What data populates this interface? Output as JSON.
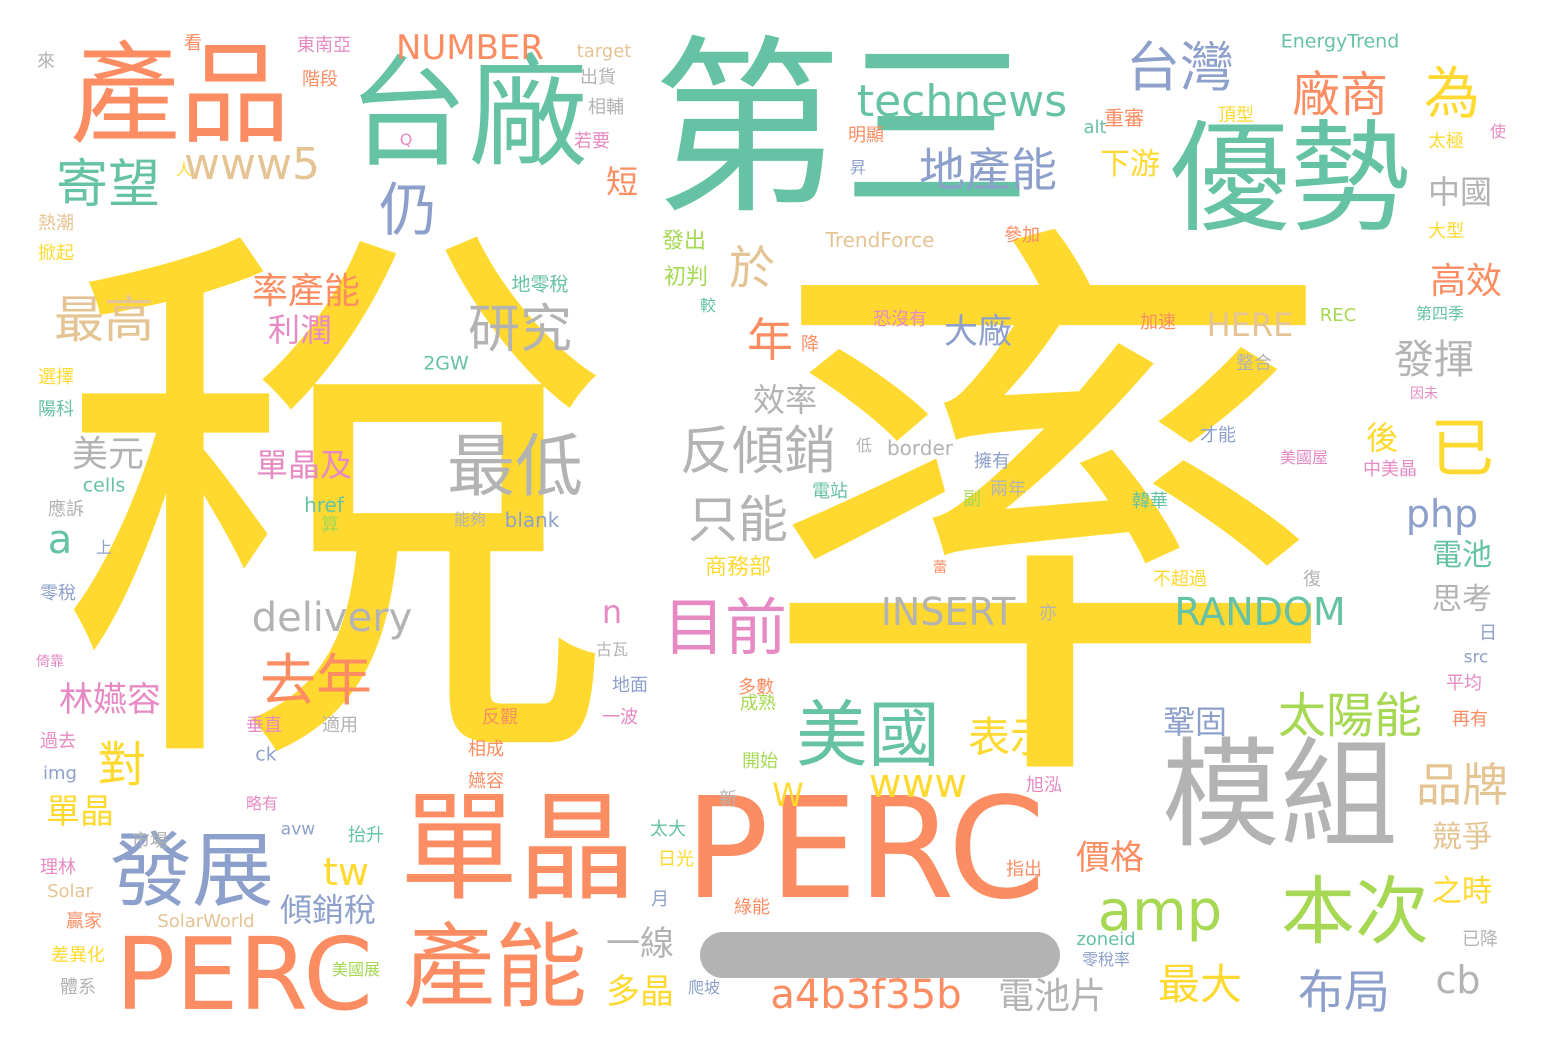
{
  "palette": {
    "yellow": "#ffd92f",
    "green": "#66c2a5",
    "orange": "#fc8d62",
    "blue": "#8da0cb",
    "pink": "#e78ac3",
    "lime": "#a6d854",
    "tan": "#e5c494",
    "gray": "#b3b3b3"
  },
  "words": [
    {
      "t": "稅",
      "c": "yellow"
    },
    {
      "t": "率",
      "c": "yellow"
    },
    {
      "t": "第三",
      "c": "green"
    },
    {
      "t": "台廠",
      "c": "green"
    },
    {
      "t": "產品",
      "c": "orange"
    },
    {
      "t": "優勢",
      "c": "green"
    },
    {
      "t": "PERC",
      "c": "orange"
    },
    {
      "t": "單晶",
      "c": "orange"
    },
    {
      "t": "模組",
      "c": "gray"
    },
    {
      "t": "PERC",
      "c": "orange"
    },
    {
      "t": "產能",
      "c": "orange"
    },
    {
      "t": "發展",
      "c": "blue"
    },
    {
      "t": "最低",
      "c": "gray"
    },
    {
      "t": "美國",
      "c": "green"
    },
    {
      "t": "本次",
      "c": "lime"
    },
    {
      "t": "台灣",
      "c": "blue"
    },
    {
      "t": "technews",
      "c": "green"
    },
    {
      "t": "廠商",
      "c": "orange"
    },
    {
      "t": "為",
      "c": "yellow"
    },
    {
      "t": "寄望",
      "c": "green"
    },
    {
      "t": "www5",
      "c": "tan"
    },
    {
      "t": "地產能",
      "c": "blue"
    },
    {
      "t": "仍",
      "c": "blue"
    },
    {
      "t": "研究",
      "c": "gray"
    },
    {
      "t": "反傾銷",
      "c": "gray"
    },
    {
      "t": "只能",
      "c": "gray"
    },
    {
      "t": "目前",
      "c": "pink"
    },
    {
      "t": "已",
      "c": "yellow"
    },
    {
      "t": "最高",
      "c": "tan"
    },
    {
      "t": "於",
      "c": "tan"
    },
    {
      "t": "年",
      "c": "orange"
    },
    {
      "t": "去年",
      "c": "orange"
    },
    {
      "t": "amp",
      "c": "lime"
    },
    {
      "t": "太陽能",
      "c": "lime"
    },
    {
      "t": "表示",
      "c": "yellow"
    },
    {
      "t": "delivery",
      "c": "gray"
    },
    {
      "t": "INSERT",
      "c": "gray"
    },
    {
      "t": "RANDOM",
      "c": "green"
    },
    {
      "t": "a4b3f35b",
      "c": "orange"
    },
    {
      "t": "NUMBER",
      "c": "orange"
    },
    {
      "t": "品牌",
      "c": "tan"
    },
    {
      "t": "www",
      "c": "yellow"
    },
    {
      "t": "布局",
      "c": "blue"
    },
    {
      "t": "最大",
      "c": "yellow"
    },
    {
      "t": "率產能",
      "c": "orange"
    },
    {
      "t": "發揮",
      "c": "gray"
    },
    {
      "t": "高效",
      "c": "orange"
    },
    {
      "t": "php",
      "c": "blue"
    },
    {
      "t": "電池片",
      "c": "gray"
    },
    {
      "t": "tw",
      "c": "yellow"
    },
    {
      "t": "cb",
      "c": "gray"
    },
    {
      "t": "美元",
      "c": "gray"
    },
    {
      "t": "a",
      "c": "green"
    },
    {
      "t": "對",
      "c": "yellow"
    },
    {
      "t": "林嬿容",
      "c": "pink"
    },
    {
      "t": "單晶及",
      "c": "pink"
    },
    {
      "t": "利潤",
      "c": "pink"
    },
    {
      "t": "大廠",
      "c": "blue"
    },
    {
      "t": "效率",
      "c": "gray"
    },
    {
      "t": "傾銷稅",
      "c": "blue"
    },
    {
      "t": "價格",
      "c": "orange"
    },
    {
      "t": "多晶",
      "c": "yellow"
    },
    {
      "t": "一線",
      "c": "gray"
    },
    {
      "t": "下游",
      "c": "yellow"
    },
    {
      "t": "中國",
      "c": "gray"
    },
    {
      "t": "HERE",
      "c": "tan"
    },
    {
      "t": "後",
      "c": "yellow"
    },
    {
      "t": "電池",
      "c": "green"
    },
    {
      "t": "思考",
      "c": "gray"
    },
    {
      "t": "競爭",
      "c": "tan"
    },
    {
      "t": "之時",
      "c": "yellow"
    },
    {
      "t": "鞏固",
      "c": "blue"
    },
    {
      "t": "短",
      "c": "orange"
    },
    {
      "t": "n",
      "c": "pink"
    },
    {
      "t": "W",
      "c": "yellow"
    },
    {
      "t": "單晶",
      "c": "yellow"
    },
    {
      "t": "TrendForce",
      "c": "tan"
    },
    {
      "t": "EnergyTrend",
      "c": "green"
    },
    {
      "t": "商務部",
      "c": "yellow"
    },
    {
      "t": "初判",
      "c": "lime"
    },
    {
      "t": "發出",
      "c": "lime"
    },
    {
      "t": "地零稅",
      "c": "green"
    },
    {
      "t": "blank",
      "c": "blue"
    },
    {
      "t": "能夠",
      "c": "gray"
    },
    {
      "t": "2GW",
      "c": "green"
    },
    {
      "t": "border",
      "c": "gray"
    },
    {
      "t": "href",
      "c": "green"
    },
    {
      "t": "cells",
      "c": "green"
    },
    {
      "t": "img",
      "c": "blue"
    },
    {
      "t": "ck",
      "c": "blue"
    },
    {
      "t": "avw",
      "c": "blue"
    },
    {
      "t": "alt",
      "c": "green"
    },
    {
      "t": "REC",
      "c": "lime"
    },
    {
      "t": "Solar",
      "c": "tan"
    },
    {
      "t": "SolarWorld",
      "c": "tan"
    },
    {
      "t": "zoneid",
      "c": "green"
    },
    {
      "t": "src",
      "c": "blue"
    },
    {
      "t": "target",
      "c": "tan"
    },
    {
      "t": "東南亞",
      "c": "pink"
    },
    {
      "t": "階段",
      "c": "orange"
    },
    {
      "t": "出貨",
      "c": "gray"
    },
    {
      "t": "相輔",
      "c": "gray"
    },
    {
      "t": "若要",
      "c": "pink"
    },
    {
      "t": "看",
      "c": "orange"
    },
    {
      "t": "來",
      "c": "gray"
    },
    {
      "t": "熱潮",
      "c": "tan"
    },
    {
      "t": "掀起",
      "c": "yellow"
    },
    {
      "t": "選擇",
      "c": "yellow"
    },
    {
      "t": "陽科",
      "c": "green"
    },
    {
      "t": "應訴",
      "c": "gray"
    },
    {
      "t": "上",
      "c": "blue"
    },
    {
      "t": "零稅",
      "c": "blue"
    },
    {
      "t": "倚靠",
      "c": "pink"
    },
    {
      "t": "過去",
      "c": "pink"
    },
    {
      "t": "理林",
      "c": "pink"
    },
    {
      "t": "贏家",
      "c": "orange"
    },
    {
      "t": "差異化",
      "c": "yellow"
    },
    {
      "t": "體系",
      "c": "gray"
    },
    {
      "t": "美國展",
      "c": "lime"
    },
    {
      "t": "爬坡",
      "c": "blue"
    },
    {
      "t": "嬿容",
      "c": "orange"
    },
    {
      "t": "相成",
      "c": "orange"
    },
    {
      "t": "反觀",
      "c": "orange"
    },
    {
      "t": "一波",
      "c": "pink"
    },
    {
      "t": "地面",
      "c": "blue"
    },
    {
      "t": "古瓦",
      "c": "gray"
    },
    {
      "t": "垂直",
      "c": "pink"
    },
    {
      "t": "適用",
      "c": "gray"
    },
    {
      "t": "市場",
      "c": "gray"
    },
    {
      "t": "略有",
      "c": "pink"
    },
    {
      "t": "抬升",
      "c": "green"
    },
    {
      "t": "太大",
      "c": "green"
    },
    {
      "t": "日光",
      "c": "yellow"
    },
    {
      "t": "月",
      "c": "blue"
    },
    {
      "t": "綠能",
      "c": "orange"
    },
    {
      "t": "開始",
      "c": "lime"
    },
    {
      "t": "新",
      "c": "gray"
    },
    {
      "t": "成熟",
      "c": "lime"
    },
    {
      "t": "多數",
      "c": "orange"
    },
    {
      "t": "指出",
      "c": "orange"
    },
    {
      "t": "旭泓",
      "c": "pink"
    },
    {
      "t": "零稅率",
      "c": "blue"
    },
    {
      "t": "韓華",
      "c": "green"
    },
    {
      "t": "兩年",
      "c": "gray"
    },
    {
      "t": "副",
      "c": "lime"
    },
    {
      "t": "擁有",
      "c": "blue"
    },
    {
      "t": "電站",
      "c": "green"
    },
    {
      "t": "算",
      "c": "lime"
    },
    {
      "t": "低",
      "c": "gray"
    },
    {
      "t": "才能",
      "c": "blue"
    },
    {
      "t": "美國屋",
      "c": "pink"
    },
    {
      "t": "中美晶",
      "c": "pink"
    },
    {
      "t": "因未",
      "c": "pink"
    },
    {
      "t": "不超過",
      "c": "yellow"
    },
    {
      "t": "復",
      "c": "gray"
    },
    {
      "t": "亦",
      "c": "gray"
    },
    {
      "t": "日",
      "c": "blue"
    },
    {
      "t": "平均",
      "c": "pink"
    },
    {
      "t": "再有",
      "c": "orange"
    },
    {
      "t": "已降",
      "c": "gray"
    },
    {
      "t": "恐沒有",
      "c": "pink"
    },
    {
      "t": "降",
      "c": "orange"
    },
    {
      "t": "較",
      "c": "green"
    },
    {
      "t": "參加",
      "c": "orange"
    },
    {
      "t": "加速",
      "c": "orange"
    },
    {
      "t": "第四季",
      "c": "green"
    },
    {
      "t": "整合",
      "c": "gray"
    },
    {
      "t": "大型",
      "c": "yellow"
    },
    {
      "t": "太極",
      "c": "yellow"
    },
    {
      "t": "頂型",
      "c": "yellow"
    },
    {
      "t": "明顯",
      "c": "orange"
    },
    {
      "t": "重審",
      "c": "orange"
    },
    {
      "t": "昇",
      "c": "blue"
    },
    {
      "t": "使",
      "c": "pink"
    },
    {
      "t": "人",
      "c": "yellow"
    },
    {
      "t": "Q",
      "c": "pink"
    },
    {
      "t": "蕾",
      "c": "orange"
    }
  ]
}
